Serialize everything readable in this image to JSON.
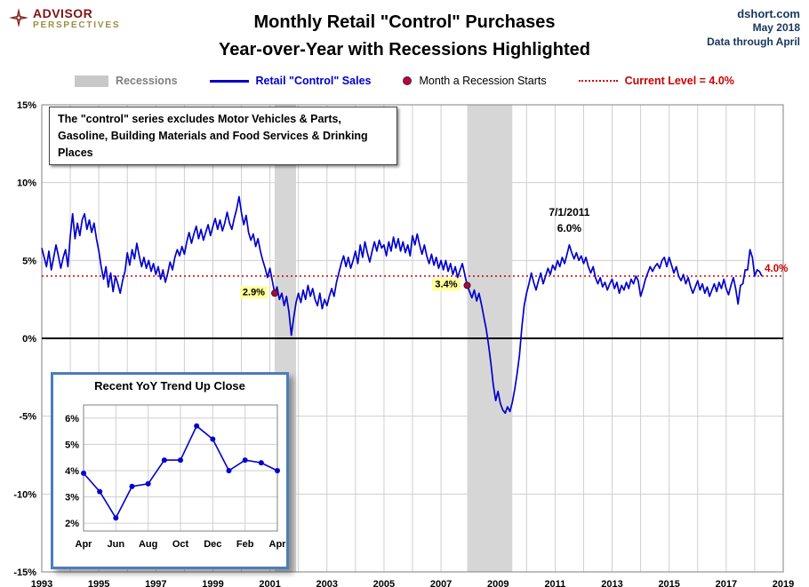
{
  "header": {
    "logo_line1": "ADVISOR",
    "logo_line2": "PERSPECTIVES",
    "title_line1": "Monthly Retail \"Control\" Purchases",
    "title_line2": "Year-over-Year with Recessions Highlighted",
    "source": "dshort.com",
    "date": "May 2018",
    "data_through": "Data through April"
  },
  "legend": {
    "items": [
      {
        "label": "Recessions"
      },
      {
        "label": "Retail \"Control\" Sales"
      },
      {
        "label": "Month a Recession Starts"
      },
      {
        "label": "Current Level = 4.0%"
      }
    ]
  },
  "note": "The \"control\" series excludes Motor Vehicles & Parts, Gasoline, Building Materials and Food Services & Drinking Places",
  "colors": {
    "line": "#0000CC",
    "recession_band": "#D6D6D6",
    "current_level_red": "#CC0000",
    "marker": "#C00040",
    "highlight_yellow": "#FFFF99",
    "navy": "#17365D",
    "maroon": "#7F1416",
    "gold": "#A08C44",
    "grid": "#CFCFCF"
  },
  "chart_data": [
    {
      "type": "line",
      "title": "Monthly Retail \"Control\" Purchases Year-over-Year",
      "x_start_year": 1993,
      "x_interval_months": 1,
      "xlim": [
        1993,
        2019
      ],
      "ylim": [
        -15,
        15
      ],
      "grid": true,
      "legend_position": "top",
      "x_ticks": [
        1993,
        1995,
        1997,
        1999,
        2001,
        2003,
        2005,
        2007,
        2009,
        2011,
        2013,
        2015,
        2017,
        2019
      ],
      "y_tick_values": [
        15,
        10,
        5,
        0,
        -5,
        -10,
        -15
      ],
      "y_tick_labels": [
        "15%",
        "10%",
        "5%",
        "0%",
        "-5%",
        "-10%",
        "-15%"
      ],
      "recessions": [
        {
          "start": 2001.167,
          "end": 2001.917
        },
        {
          "start": 2007.917,
          "end": 2009.5
        }
      ],
      "recession_start_points": [
        {
          "x": 2001.167,
          "y": 2.9,
          "label": "2.9%"
        },
        {
          "x": 2007.917,
          "y": 3.4,
          "label": "3.4%"
        }
      ],
      "current_level": 4.0,
      "current_level_label": "4.0%",
      "peak_annotation": {
        "x": 2011.5,
        "y": 6.0,
        "line1": "7/1/2011",
        "line2": "6.0%"
      },
      "values": [
        5.8,
        5.2,
        4.6,
        5.6,
        4.4,
        5.2,
        6.0,
        5.3,
        4.5,
        5.2,
        5.7,
        4.6,
        6.6,
        8.0,
        6.4,
        7.4,
        6.6,
        7.6,
        8.0,
        7.0,
        7.6,
        6.8,
        7.4,
        6.4,
        5.6,
        4.6,
        3.8,
        4.6,
        3.3,
        4.2,
        3.0,
        4.0,
        3.5,
        2.9,
        3.7,
        4.3,
        5.5,
        4.7,
        5.7,
        5.1,
        6.1,
        5.3,
        4.6,
        5.2,
        4.5,
        5.0,
        4.3,
        4.8,
        4.1,
        4.6,
        3.8,
        4.4,
        3.6,
        4.2,
        4.9,
        4.4,
        5.2,
        5.7,
        5.3,
        5.9,
        5.4,
        6.2,
        6.8,
        6.1,
        6.7,
        7.2,
        6.4,
        7.0,
        6.3,
        6.8,
        7.3,
        6.6,
        7.2,
        7.7,
        7.0,
        7.6,
        6.9,
        7.4,
        8.1,
        7.4,
        7.0,
        7.7,
        8.3,
        9.1,
        8.1,
        7.3,
        7.9,
        6.8,
        6.3,
        6.7,
        5.9,
        6.4,
        5.6,
        5.0,
        4.5,
        3.9,
        4.5,
        3.7,
        2.9,
        3.3,
        2.5,
        2.9,
        2.1,
        2.7,
        1.7,
        0.2,
        1.3,
        2.3,
        2.9,
        2.3,
        3.1,
        2.5,
        3.4,
        2.7,
        3.2,
        2.5,
        2.1,
        2.9,
        1.9,
        2.5,
        2.1,
        2.7,
        3.2,
        2.7,
        3.6,
        4.2,
        4.8,
        5.3,
        4.6,
        5.2,
        4.5,
        5.0,
        5.6,
        4.8,
        6.0,
        5.2,
        6.2,
        5.5,
        4.9,
        5.6,
        6.2,
        5.6,
        6.3,
        5.8,
        6.0,
        5.3,
        6.2,
        5.6,
        6.5,
        5.8,
        6.4,
        5.6,
        6.2,
        5.5,
        6.0,
        5.3,
        6.6,
        6.0,
        6.7,
        6.0,
        5.4,
        6.0,
        5.3,
        4.8,
        5.4,
        4.7,
        5.2,
        4.5,
        5.0,
        4.4,
        5.0,
        4.3,
        4.8,
        4.1,
        4.6,
        3.9,
        4.4,
        4.8,
        4.1,
        3.4,
        3.0,
        2.6,
        3.1,
        2.4,
        2.9,
        2.2,
        1.4,
        0.6,
        -0.4,
        -1.6,
        -3.0,
        -4.0,
        -3.4,
        -4.2,
        -4.6,
        -4.8,
        -4.4,
        -4.7,
        -4.1,
        -3.3,
        -2.3,
        -1.1,
        0.7,
        2.1,
        2.9,
        3.5,
        4.2,
        3.6,
        3.1,
        3.7,
        4.2,
        3.5,
        4.0,
        4.5,
        4.1,
        4.7,
        4.4,
        5.0,
        4.6,
        5.2,
        4.8,
        5.4,
        6.0,
        5.5,
        5.1,
        5.5,
        5.0,
        5.3,
        4.8,
        5.2,
        4.6,
        4.2,
        4.6,
        3.9,
        3.5,
        3.9,
        3.3,
        3.6,
        3.1,
        3.5,
        3.8,
        3.2,
        3.6,
        2.9,
        3.4,
        3.1,
        3.6,
        3.2,
        3.8,
        3.5,
        4.0,
        3.7,
        2.7,
        3.2,
        3.8,
        4.2,
        4.6,
        4.3,
        4.6,
        4.8,
        4.5,
        5.0,
        5.2,
        4.6,
        5.2,
        4.7,
        4.2,
        4.6,
        4.0,
        3.7,
        4.1,
        3.5,
        3.9,
        3.3,
        2.9,
        3.3,
        3.7,
        3.1,
        3.5,
        2.9,
        3.3,
        2.7,
        3.1,
        3.5,
        3.0,
        3.6,
        3.2,
        3.8,
        3.2,
        2.8,
        3.4,
        3.9,
        3.2,
        2.2,
        3.4,
        3.5,
        4.4,
        4.4,
        5.7,
        5.2,
        4.0,
        4.4,
        4.3,
        4.0
      ]
    },
    {
      "type": "line",
      "title": "Recent YoY Trend Up Close",
      "categories": [
        "Apr",
        "May",
        "Jun",
        "Jul",
        "Aug",
        "Sep",
        "Oct",
        "Nov",
        "Dec",
        "Jan",
        "Feb",
        "Mar",
        "Apr"
      ],
      "values": [
        3.9,
        3.2,
        2.2,
        3.4,
        3.5,
        4.4,
        4.4,
        5.7,
        5.2,
        4.0,
        4.4,
        4.3,
        4.0
      ],
      "x_tick_labels": [
        "Apr",
        "Jun",
        "Aug",
        "Oct",
        "Dec",
        "Feb",
        "Apr"
      ],
      "y_tick_values": [
        6,
        5,
        4,
        3,
        2
      ],
      "y_tick_labels": [
        "6%",
        "5%",
        "4%",
        "3%",
        "2%"
      ],
      "ylim": [
        1.7,
        6.5
      ],
      "grid": true
    }
  ]
}
